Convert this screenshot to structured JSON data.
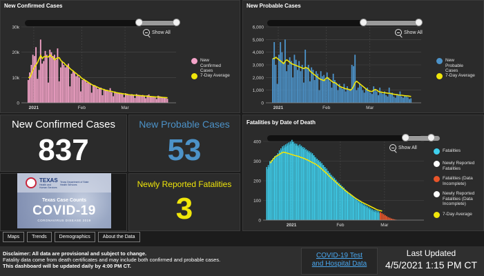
{
  "colors": {
    "confirmed": "#f4a3c8",
    "probable": "#4c92c8",
    "fatalities": "#3fd0ee",
    "fatalities_incomplete": "#e8552a",
    "avg": "#f0e60a",
    "probable_value": "#4c92c8",
    "fatal_value": "#f0e60a"
  },
  "panels": {
    "confirmed": {
      "title": "New Confirmed Cases",
      "show_all": "Show All",
      "legend": [
        "New Confirmed Cases",
        "7-Day Average"
      ]
    },
    "probable": {
      "title": "New Probable Cases",
      "show_all": "Show All",
      "legend": [
        "New Probable Cases",
        "7-Day Average"
      ]
    },
    "fatalities_chart": {
      "title": "Fatalities by Date of Death",
      "show_all": "Show All",
      "legend": [
        "Fatalities",
        "Newly Reported Fatalities",
        "Fatalities (Data Incomplete)",
        "Newly Reported Fatalities (Data Incomplete)",
        "7-Day Average"
      ]
    }
  },
  "kpis": {
    "confirmed_label": "New Confirmed Cases",
    "confirmed_value": "837",
    "probable_label": "New Probable Cases",
    "probable_value": "53",
    "fatal_label": "Newly Reported Fatalities",
    "fatal_value": "3"
  },
  "logo": {
    "state": "TEXAS",
    "agency_left": "Health and Human Services",
    "agency_right": "Texas Department of State Health Services",
    "line1": "Texas Case Counts",
    "line2": "COVID-19",
    "line3": "CORONAVIRUS DISEASE 2019"
  },
  "tabs": [
    "Maps",
    "Trends",
    "Demographics",
    "About the Data"
  ],
  "footer": {
    "disclaimer_bold": "Disclaimer: All data are provisional and subject to change.",
    "disclaimer_line2": "Fatality data come from death certificates and may include both confirmed and probable cases.",
    "disclaimer_line3": "This dashboard will be updated daily by 4:00 PM CT.",
    "link_line1": "COVID-19 Test",
    "link_line2": "and Hospital Data",
    "last_updated_label": "Last Updated",
    "last_updated_value": "4/5/2021 1:15 PM CT"
  },
  "chart_data": [
    {
      "type": "bar",
      "title": "New Confirmed Cases",
      "y_ticks": [
        "0",
        "10k",
        "20k",
        "30k"
      ],
      "ylim": [
        0,
        30000
      ],
      "x_ticks": [
        "2021",
        "Feb",
        "Mar"
      ],
      "x_tick_days": [
        4,
        35,
        63
      ],
      "day_range": [
        -4,
        96
      ],
      "series": [
        {
          "name": "New Confirmed Cases",
          "start_day": 0,
          "values": [
            9000,
            12000,
            15000,
            19000,
            18500,
            22000,
            9500,
            13000,
            25000,
            15500,
            16500,
            20500,
            19000,
            8000,
            21000,
            20000,
            18500,
            19000,
            17000,
            21500,
            8500,
            14000,
            16500,
            15000,
            14000,
            14500,
            15500,
            6500,
            11500,
            12500,
            12000,
            10500,
            11000,
            10000,
            4500,
            9000,
            9500,
            9000,
            8000,
            8000,
            7500,
            4000,
            7000,
            7000,
            6500,
            5500,
            6000,
            6000,
            3000,
            5500,
            5200,
            5000,
            4500,
            5800,
            4200,
            2600,
            4500,
            4200,
            4000,
            3700,
            3900,
            3400,
            2200,
            3800,
            3600,
            3300,
            3200,
            3400,
            2900,
            1900,
            3500,
            3200,
            3100,
            3000,
            3100,
            2800,
            1800,
            3000,
            3300,
            2600,
            2400,
            2500,
            2300,
            1500,
            2800,
            2600,
            2400,
            2200,
            2300,
            2000,
            1600
          ]
        },
        {
          "name": "7-Day Average",
          "start_day": 0,
          "values": [
            10000,
            10000,
            11500,
            13000,
            14200,
            15000,
            16000,
            17500,
            18700,
            17500,
            18200,
            18300,
            18200,
            18100,
            19000,
            18200,
            17900,
            17000,
            17500,
            17800,
            17800,
            16800,
            16100,
            15800,
            15000,
            14700,
            14200,
            13500,
            13000,
            12600,
            12000,
            11600,
            11000,
            10700,
            10000,
            9500,
            9200,
            8800,
            8400,
            8000,
            7600,
            7200,
            6900,
            6700,
            6400,
            6100,
            5800,
            5600,
            5400,
            5200,
            5000,
            4900,
            4700,
            4600,
            4500,
            4300,
            4100,
            4000,
            3900,
            3800,
            3700,
            3600,
            3500,
            3400,
            3300,
            3200,
            3150,
            3100,
            3050,
            3000,
            2950,
            2900,
            2850,
            2800,
            2750,
            2700,
            2650,
            2600,
            2550,
            2500,
            2450,
            2400,
            2350,
            2300,
            2300,
            2250,
            2200,
            2150,
            2100,
            2050,
            2000
          ]
        }
      ]
    },
    {
      "type": "bar",
      "title": "New Probable Cases",
      "y_ticks": [
        "0",
        "1,000",
        "2,000",
        "3,000",
        "4,000",
        "5,000",
        "6,000"
      ],
      "ylim": [
        0,
        6000
      ],
      "x_ticks": [
        "2021",
        "Feb",
        "Mar"
      ],
      "x_tick_days": [
        4,
        35,
        63
      ],
      "day_range": [
        -4,
        96
      ],
      "series": [
        {
          "name": "New Probable Cases",
          "start_day": 0,
          "values": [
            3500,
            4800,
            3000,
            1500,
            3800,
            4800,
            4000,
            3200,
            5000,
            2500,
            3000,
            3600,
            3300,
            2000,
            3800,
            3400,
            2600,
            3300,
            2500,
            3000,
            1600,
            4200,
            2800,
            3000,
            1700,
            2800,
            2600,
            1800,
            2500,
            2300,
            1000,
            2500,
            2100,
            2200,
            1800,
            2400,
            2000,
            1700,
            1200,
            2300,
            1800,
            1600,
            1000,
            1500,
            1200,
            1100,
            1500,
            900,
            1300,
            1000,
            1100,
            3000,
            2900,
            3800,
            1000,
            1200,
            1500,
            1300,
            1000,
            800,
            1100,
            1200,
            900,
            800,
            700,
            1300,
            1100,
            900,
            600,
            1200,
            800,
            700,
            900,
            600,
            500,
            1200,
            700,
            800,
            500,
            400,
            700,
            600,
            900,
            500,
            400,
            600,
            500,
            450,
            300,
            350
          ]
        },
        {
          "name": "7-Day Average",
          "start_day": 0,
          "values": [
            3500,
            3500,
            3600,
            3500,
            3400,
            3300,
            3200,
            3100,
            3300,
            3400,
            3300,
            3200,
            3100,
            3050,
            3000,
            2950,
            2900,
            2850,
            2800,
            2750,
            2700,
            2800,
            2750,
            2700,
            2500,
            2400,
            2300,
            2200,
            2100,
            2000,
            1900,
            1850,
            1800,
            1750,
            1900,
            2000,
            1900,
            1800,
            1700,
            1600,
            1600,
            1500,
            1400,
            1300,
            1250,
            1200,
            1150,
            1100,
            1100,
            1050,
            1000,
            1100,
            1300,
            1600,
            1700,
            1600,
            1500,
            1400,
            1300,
            1200,
            1100,
            1000,
            950,
            900,
            900,
            1000,
            1050,
            1000,
            900,
            850,
            850,
            800,
            800,
            780,
            760,
            750,
            740,
            700,
            680,
            660,
            640,
            620,
            600,
            600,
            580,
            560,
            550,
            540,
            520,
            500
          ]
        }
      ]
    },
    {
      "type": "bar",
      "title": "Fatalities by Date of Death",
      "y_ticks": [
        "0",
        "100",
        "200",
        "300",
        "400"
      ],
      "ylim": [
        0,
        400
      ],
      "x_ticks": [
        "2021",
        "Feb",
        "Mar"
      ],
      "x_tick_days": [
        4,
        35,
        63
      ],
      "day_range": [
        -14,
        88
      ],
      "series": [
        {
          "name": "Fatalities",
          "start_day": -12,
          "values": [
            270,
            280,
            300,
            305,
            315,
            325,
            330,
            340,
            355,
            365,
            375,
            380,
            385,
            390,
            395,
            400,
            408,
            398,
            390,
            388,
            380,
            385,
            378,
            372,
            368,
            360,
            355,
            350,
            345,
            340,
            330,
            320,
            312,
            305,
            298,
            290,
            280,
            270,
            262,
            250,
            240,
            230,
            222,
            215,
            205,
            195,
            188,
            180,
            172,
            165,
            155,
            148,
            140,
            135,
            128,
            120,
            114,
            108,
            100,
            95,
            90,
            85,
            80,
            75,
            70,
            65,
            60,
            55,
            52,
            50,
            48,
            45
          ]
        },
        {
          "name": "Fatalities (Data Incomplete)",
          "start_day": 60,
          "values": [
            40,
            35,
            30,
            25,
            20,
            15,
            12,
            8,
            6,
            4,
            2
          ]
        },
        {
          "name": "7-Day Average",
          "start_day": -10,
          "values": [
            290,
            300,
            310,
            320,
            325,
            330,
            335,
            340,
            345,
            345,
            343,
            340,
            338,
            335,
            333,
            330,
            328,
            326,
            324,
            320,
            318,
            315,
            312,
            308,
            305,
            300,
            296,
            292,
            288,
            284,
            278,
            272,
            265,
            258,
            250,
            243,
            236,
            228,
            220,
            212,
            205,
            198,
            190,
            183,
            176,
            169,
            162,
            155,
            148,
            142,
            136,
            130,
            124,
            118,
            112,
            107,
            102,
            97,
            92,
            88,
            84,
            80,
            76,
            72,
            68,
            64,
            60,
            56,
            52,
            50,
            48,
            46
          ]
        }
      ]
    }
  ]
}
